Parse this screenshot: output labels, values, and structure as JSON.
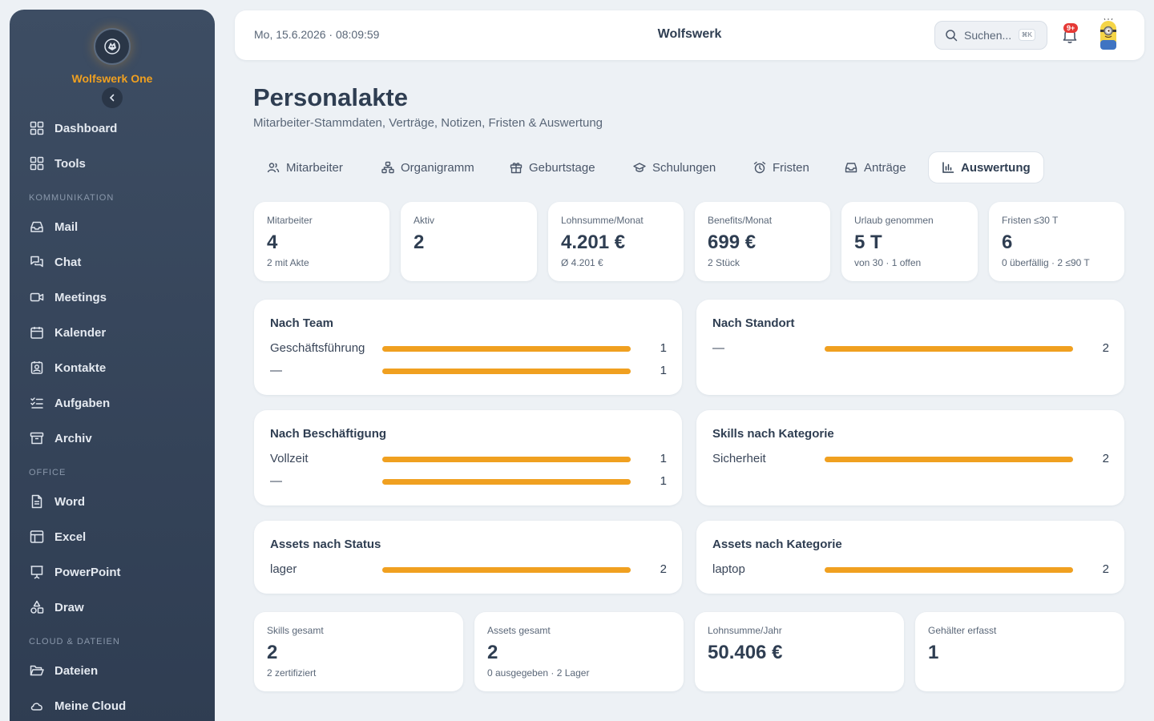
{
  "sidebar": {
    "brand": "Wolfswerk One",
    "items": [
      {
        "label": "Dashboard",
        "icon": "grid-icon"
      },
      {
        "label": "Tools",
        "icon": "grid-icon"
      },
      {
        "label": "Mail",
        "icon": "inbox-icon"
      },
      {
        "label": "Chat",
        "icon": "chat-icon"
      },
      {
        "label": "Meetings",
        "icon": "video-icon"
      },
      {
        "label": "Kalender",
        "icon": "calendar-icon"
      },
      {
        "label": "Kontakte",
        "icon": "contact-icon"
      },
      {
        "label": "Aufgaben",
        "icon": "checklist-icon"
      },
      {
        "label": "Archiv",
        "icon": "archive-icon"
      },
      {
        "label": "Word",
        "icon": "document-icon"
      },
      {
        "label": "Excel",
        "icon": "table-icon"
      },
      {
        "label": "PowerPoint",
        "icon": "presentation-icon"
      },
      {
        "label": "Draw",
        "icon": "shapes-icon"
      },
      {
        "label": "Dateien",
        "icon": "folder-icon"
      },
      {
        "label": "Meine Cloud",
        "icon": "cloud-icon"
      }
    ],
    "sections": [
      "KOMMUNIKATION",
      "OFFICE",
      "CLOUD & DATEIEN"
    ]
  },
  "topbar": {
    "datetime": "Mo, 15.6.2026 · 08:09:59",
    "title": "Wolfswerk",
    "search_placeholder": "Suchen...",
    "search_shortcut": "⌘K",
    "notification_badge": "9+"
  },
  "page": {
    "title": "Personalakte",
    "subtitle": "Mitarbeiter-Stammdaten, Verträge, Notizen, Fristen & Auswertung"
  },
  "tabs": [
    {
      "label": "Mitarbeiter",
      "icon": "users-icon"
    },
    {
      "label": "Organigramm",
      "icon": "org-chart-icon"
    },
    {
      "label": "Geburtstage",
      "icon": "gift-icon"
    },
    {
      "label": "Schulungen",
      "icon": "graduation-cap-icon"
    },
    {
      "label": "Fristen",
      "icon": "alarm-clock-icon"
    },
    {
      "label": "Anträge",
      "icon": "inbox-icon"
    },
    {
      "label": "Auswertung",
      "icon": "bar-chart-icon",
      "active": true
    }
  ],
  "stats_top": [
    {
      "label": "Mitarbeiter",
      "value": "4",
      "sub": "2 mit Akte"
    },
    {
      "label": "Aktiv",
      "value": "2",
      "sub": ""
    },
    {
      "label": "Lohnsumme/Monat",
      "value": "4.201 €",
      "sub": "Ø 4.201 €"
    },
    {
      "label": "Benefits/Monat",
      "value": "699 €",
      "sub": "2 Stück"
    },
    {
      "label": "Urlaub genommen",
      "value": "5 T",
      "sub": "von 30 · 1 offen"
    },
    {
      "label": "Fristen ≤30 T",
      "value": "6",
      "sub": "0 überfällig · 2 ≤90 T"
    }
  ],
  "panels": [
    {
      "title": "Nach Team",
      "rows": [
        {
          "label": "Geschäftsführung",
          "count": "1",
          "fraction": 1
        },
        {
          "label": "—",
          "count": "1",
          "fraction": 1
        }
      ]
    },
    {
      "title": "Nach Standort",
      "rows": [
        {
          "label": "—",
          "count": "2",
          "fraction": 1
        }
      ]
    },
    {
      "title": "Nach Beschäftigung",
      "rows": [
        {
          "label": "Vollzeit",
          "count": "1",
          "fraction": 1
        },
        {
          "label": "—",
          "count": "1",
          "fraction": 1
        }
      ]
    },
    {
      "title": "Skills nach Kategorie",
      "rows": [
        {
          "label": "Sicherheit",
          "count": "2",
          "fraction": 1
        }
      ]
    },
    {
      "title": "Assets nach Status",
      "rows": [
        {
          "label": "lager",
          "count": "2",
          "fraction": 1
        }
      ]
    },
    {
      "title": "Assets nach Kategorie",
      "rows": [
        {
          "label": "laptop",
          "count": "2",
          "fraction": 1
        }
      ]
    }
  ],
  "stats_bottom": [
    {
      "label": "Skills gesamt",
      "value": "2",
      "sub": "2 zertifiziert"
    },
    {
      "label": "Assets gesamt",
      "value": "2",
      "sub": "0 ausgegeben · 2 Lager"
    },
    {
      "label": "Lohnsumme/Jahr",
      "value": "50.406 €",
      "sub": ""
    },
    {
      "label": "Gehälter erfasst",
      "value": "1",
      "sub": ""
    }
  ],
  "colors": {
    "accent": "#f0a020",
    "sidebar": "#34445a",
    "badge": "#e53935"
  }
}
